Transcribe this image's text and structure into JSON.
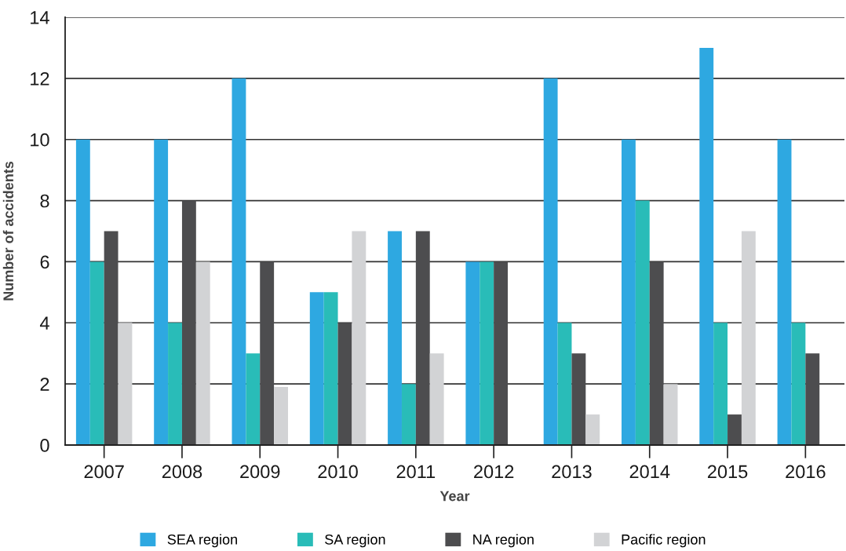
{
  "chart_data": {
    "type": "bar",
    "xlabel": "Year",
    "ylabel": "Number of accidents",
    "categories": [
      "2007",
      "2008",
      "2009",
      "2010",
      "2011",
      "2012",
      "2013",
      "2014",
      "2015",
      "2016"
    ],
    "series": [
      {
        "name": "SEA region",
        "color": "#2ea8e1",
        "values": [
          10,
          10,
          12,
          5,
          7,
          6,
          12,
          10,
          13,
          10
        ]
      },
      {
        "name": "SA region",
        "color": "#29bcb8",
        "values": [
          6,
          4,
          3,
          5,
          2,
          6,
          4,
          8,
          4,
          4
        ]
      },
      {
        "name": "NA region",
        "color": "#4d4d4f",
        "values": [
          7,
          8,
          6,
          4,
          7,
          6,
          3,
          6,
          1,
          3
        ]
      },
      {
        "name": "Pacific region",
        "color": "#d2d3d5",
        "values": [
          4,
          6,
          1.9,
          7,
          3,
          null,
          1,
          2,
          7,
          null
        ]
      }
    ],
    "ylim": [
      0,
      14
    ],
    "yticks": [
      0,
      2,
      4,
      6,
      8,
      10,
      12,
      14
    ],
    "grid": "y",
    "legend": "bottom"
  }
}
